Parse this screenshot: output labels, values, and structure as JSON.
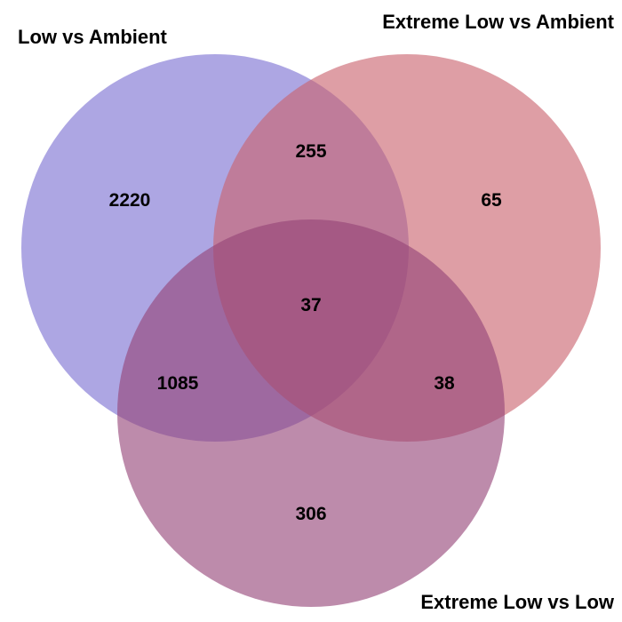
{
  "sets": [
    {
      "name": "Low vs Ambient",
      "color": "#7b6fd2"
    },
    {
      "name": "Extreme Low vs Ambient",
      "color": "#c9636d"
    },
    {
      "name": "Extreme Low vs Low",
      "color": "#944477"
    }
  ],
  "regions": {
    "low_only": "2220",
    "extreme_low_vs_ambient_only": "65",
    "extreme_low_vs_low_only": "306",
    "low_and_extreme_low_vs_ambient": "255",
    "low_and_extreme_low_vs_low": "1085",
    "extreme_low_vs_ambient_and_extreme_low_vs_low": "38",
    "all_three": "37"
  }
}
